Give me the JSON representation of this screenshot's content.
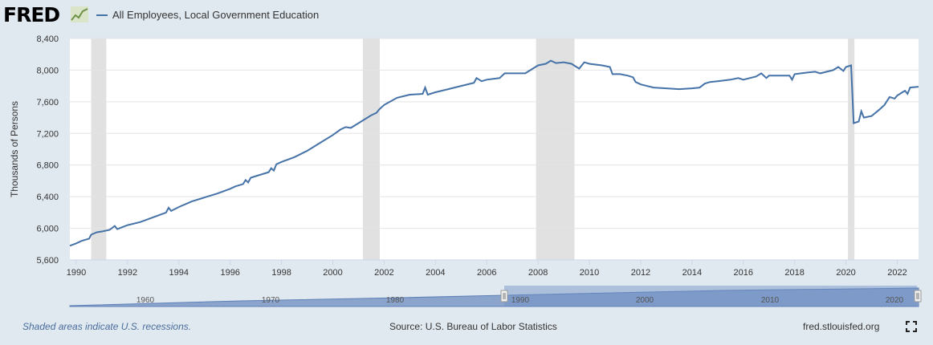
{
  "header": {
    "logo_text": "FRED",
    "series_title": "All Employees, Local Government Education"
  },
  "footer": {
    "note": "Shaded areas indicate U.S. recessions.",
    "source": "Source: U.S. Bureau of Labor Statistics",
    "url": "fred.stlouisfed.org"
  },
  "icons": {
    "logo_chart": "line-chart-icon",
    "fullscreen": "fullscreen-icon"
  },
  "colors": {
    "series": "#4572a7",
    "recession": "#e1e1e1",
    "background": "#e1e9f0",
    "plot": "#ffffff",
    "grid": "#e4e4e4",
    "navigator_fill": "#8ba4cc",
    "note_text": "#4a6d9c"
  },
  "chart_data": {
    "type": "line",
    "ylabel": "Thousands of Persons",
    "xlim": [
      1989.75,
      2022.83
    ],
    "ylim": [
      5600,
      8400
    ],
    "y_ticks": [
      5600,
      6000,
      6400,
      6800,
      7200,
      7600,
      8000,
      8400
    ],
    "y_tick_labels": [
      "5,600",
      "6,000",
      "6,400",
      "6,800",
      "7,200",
      "7,600",
      "8,000",
      "8,400"
    ],
    "x_ticks": [
      1990,
      1992,
      1994,
      1996,
      1998,
      2000,
      2002,
      2004,
      2006,
      2008,
      2010,
      2012,
      2014,
      2016,
      2018,
      2020,
      2022
    ],
    "x_tick_labels": [
      "1990",
      "1992",
      "1994",
      "1996",
      "1998",
      "2000",
      "2002",
      "2004",
      "2006",
      "2008",
      "2010",
      "2012",
      "2014",
      "2016",
      "2018",
      "2020",
      "2022"
    ],
    "grid": "horizontal",
    "recessions": [
      [
        1990.58,
        1991.17
      ],
      [
        2001.17,
        2001.83
      ],
      [
        2007.92,
        2009.42
      ],
      [
        2020.08,
        2020.33
      ]
    ],
    "series": [
      {
        "values": [
          [
            1989.75,
            5780
          ],
          [
            1990.0,
            5810
          ],
          [
            1990.2,
            5840
          ],
          [
            1990.5,
            5870
          ],
          [
            1990.58,
            5920
          ],
          [
            1990.8,
            5950
          ],
          [
            1991.0,
            5960
          ],
          [
            1991.3,
            5980
          ],
          [
            1991.5,
            6030
          ],
          [
            1991.6,
            5990
          ],
          [
            1992.0,
            6040
          ],
          [
            1992.5,
            6080
          ],
          [
            1993.0,
            6140
          ],
          [
            1993.5,
            6200
          ],
          [
            1993.6,
            6260
          ],
          [
            1993.7,
            6220
          ],
          [
            1994.0,
            6270
          ],
          [
            1994.5,
            6340
          ],
          [
            1995.0,
            6390
          ],
          [
            1995.5,
            6440
          ],
          [
            1996.0,
            6500
          ],
          [
            1996.2,
            6530
          ],
          [
            1996.5,
            6560
          ],
          [
            1996.6,
            6610
          ],
          [
            1996.7,
            6580
          ],
          [
            1996.8,
            6640
          ],
          [
            1997.0,
            6660
          ],
          [
            1997.5,
            6710
          ],
          [
            1997.6,
            6760
          ],
          [
            1997.7,
            6730
          ],
          [
            1997.8,
            6810
          ],
          [
            1998.0,
            6840
          ],
          [
            1998.5,
            6900
          ],
          [
            1999.0,
            6980
          ],
          [
            1999.5,
            7080
          ],
          [
            2000.0,
            7180
          ],
          [
            2000.3,
            7250
          ],
          [
            2000.5,
            7280
          ],
          [
            2000.7,
            7270
          ],
          [
            2001.0,
            7330
          ],
          [
            2001.5,
            7430
          ],
          [
            2001.7,
            7460
          ],
          [
            2001.8,
            7500
          ],
          [
            2002.0,
            7560
          ],
          [
            2002.5,
            7650
          ],
          [
            2003.0,
            7690
          ],
          [
            2003.5,
            7700
          ],
          [
            2003.6,
            7780
          ],
          [
            2003.7,
            7690
          ],
          [
            2004.0,
            7720
          ],
          [
            2004.5,
            7760
          ],
          [
            2005.0,
            7800
          ],
          [
            2005.5,
            7840
          ],
          [
            2005.6,
            7900
          ],
          [
            2005.8,
            7860
          ],
          [
            2006.0,
            7880
          ],
          [
            2006.5,
            7900
          ],
          [
            2006.7,
            7960
          ],
          [
            2007.0,
            7960
          ],
          [
            2007.5,
            7960
          ],
          [
            2007.7,
            8000
          ],
          [
            2008.0,
            8060
          ],
          [
            2008.3,
            8080
          ],
          [
            2008.5,
            8120
          ],
          [
            2008.7,
            8090
          ],
          [
            2009.0,
            8100
          ],
          [
            2009.3,
            8080
          ],
          [
            2009.6,
            8020
          ],
          [
            2009.8,
            8100
          ],
          [
            2010.0,
            8080
          ],
          [
            2010.5,
            8060
          ],
          [
            2010.8,
            8040
          ],
          [
            2010.9,
            7950
          ],
          [
            2011.2,
            7950
          ],
          [
            2011.5,
            7930
          ],
          [
            2011.7,
            7910
          ],
          [
            2011.8,
            7850
          ],
          [
            2012.0,
            7820
          ],
          [
            2012.5,
            7780
          ],
          [
            2013.0,
            7770
          ],
          [
            2013.5,
            7760
          ],
          [
            2014.0,
            7770
          ],
          [
            2014.3,
            7780
          ],
          [
            2014.5,
            7830
          ],
          [
            2014.7,
            7850
          ],
          [
            2015.0,
            7860
          ],
          [
            2015.5,
            7880
          ],
          [
            2015.8,
            7900
          ],
          [
            2016.0,
            7880
          ],
          [
            2016.5,
            7920
          ],
          [
            2016.7,
            7960
          ],
          [
            2016.9,
            7900
          ],
          [
            2017.0,
            7930
          ],
          [
            2017.5,
            7930
          ],
          [
            2017.8,
            7930
          ],
          [
            2017.9,
            7880
          ],
          [
            2018.0,
            7950
          ],
          [
            2018.5,
            7970
          ],
          [
            2018.8,
            7980
          ],
          [
            2019.0,
            7960
          ],
          [
            2019.5,
            8000
          ],
          [
            2019.7,
            8040
          ],
          [
            2019.9,
            7990
          ],
          [
            2020.0,
            8040
          ],
          [
            2020.2,
            8060
          ],
          [
            2020.3,
            7330
          ],
          [
            2020.5,
            7350
          ],
          [
            2020.6,
            7480
          ],
          [
            2020.7,
            7400
          ],
          [
            2021.0,
            7420
          ],
          [
            2021.3,
            7500
          ],
          [
            2021.5,
            7560
          ],
          [
            2021.7,
            7660
          ],
          [
            2021.9,
            7640
          ],
          [
            2022.0,
            7680
          ],
          [
            2022.2,
            7720
          ],
          [
            2022.3,
            7740
          ],
          [
            2022.4,
            7700
          ],
          [
            2022.5,
            7780
          ],
          [
            2022.83,
            7790
          ]
        ]
      }
    ],
    "navigator": {
      "tick_labels": [
        "1960",
        "1970",
        "1980",
        "1990",
        "2000",
        "2010",
        "2020"
      ]
    }
  }
}
